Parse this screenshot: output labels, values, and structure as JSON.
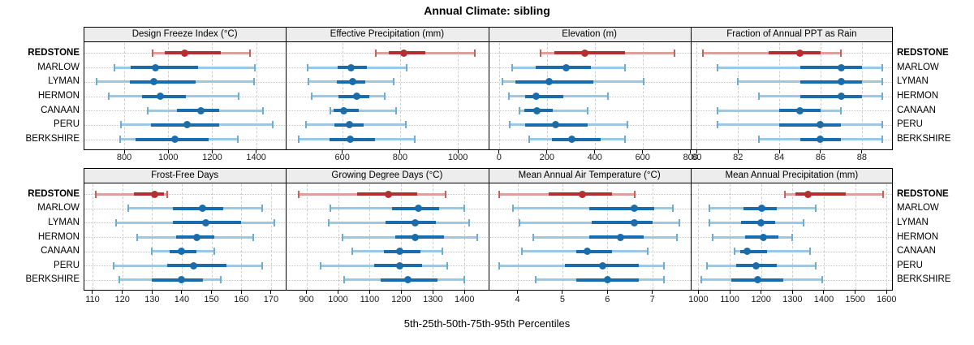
{
  "title": "Annual Climate: sibling",
  "footer_axis_caption": "5th-25th-50th-75th-95th Percentiles",
  "locations": [
    "REDSTONE",
    "MARLOW",
    "LYMAN",
    "HERMON",
    "CANAAN",
    "PERU",
    "BERKSHIRE"
  ],
  "highlight_location": "REDSTONE",
  "colors": {
    "highlight": "#B23030",
    "highlight_light": "#DDA09A",
    "highlight_cap": "#C4625C",
    "normal": "#1A6DAD",
    "normal_light": "#9DC8E3",
    "normal_cap": "#6FACD2",
    "panel_border": "#000000",
    "header_bg": "#EDEDED",
    "gridline": "#CDCDCD",
    "row_guide": "#C4C4C4",
    "tick_label": "#1a1a1a"
  },
  "chart_data": {
    "type": "dot-interval-trellis",
    "rows": 2,
    "cols": 4,
    "grid": true,
    "percentile_levels": [
      5,
      25,
      50,
      75,
      95
    ],
    "panels": [
      {
        "title": "Design Freeze Index (°C)",
        "ticks": [
          800,
          1000,
          1200,
          1400
        ],
        "xlim": [
          615,
          1535
        ],
        "data": {
          "REDSTONE": [
            930,
            985,
            1073,
            1240,
            1370
          ],
          "MARLOW": [
            755,
            830,
            940,
            1135,
            1395
          ],
          "LYMAN": [
            675,
            825,
            935,
            1125,
            1390
          ],
          "HERMON": [
            730,
            880,
            965,
            1080,
            1320
          ],
          "CANAAN": [
            905,
            1040,
            1150,
            1230,
            1430
          ],
          "PERU": [
            785,
            920,
            1085,
            1230,
            1475
          ],
          "BERKSHIRE": [
            780,
            850,
            1030,
            1185,
            1315
          ]
        }
      },
      {
        "title": "Effective Precipitation (mm)",
        "ticks": [
          600,
          800,
          1000
        ],
        "xlim": [
          405,
          1105
        ],
        "data": {
          "REDSTONE": [
            715,
            760,
            812,
            888,
            1060
          ],
          "MARLOW": [
            480,
            585,
            630,
            685,
            823
          ],
          "LYMAN": [
            482,
            580,
            635,
            680,
            777
          ],
          "HERMON": [
            495,
            588,
            649,
            693,
            747
          ],
          "CANAAN": [
            560,
            570,
            605,
            656,
            786
          ],
          "PERU": [
            474,
            572,
            625,
            673,
            819
          ],
          "BERKSHIRE": [
            449,
            556,
            628,
            712,
            851
          ]
        }
      },
      {
        "title": "Elevation (m)",
        "ticks": [
          0,
          200,
          400,
          600,
          800
        ],
        "xlim": [
          -45,
          800
        ],
        "data": {
          "REDSTONE": [
            175,
            230,
            360,
            525,
            733
          ],
          "MARLOW": [
            55,
            155,
            280,
            385,
            525
          ],
          "LYMAN": [
            15,
            70,
            210,
            395,
            605
          ],
          "HERMON": [
            40,
            110,
            155,
            270,
            455
          ],
          "CANAAN": [
            85,
            105,
            160,
            225,
            370
          ],
          "PERU": [
            45,
            110,
            235,
            370,
            535
          ],
          "BERKSHIRE": [
            125,
            220,
            305,
            425,
            525
          ]
        }
      },
      {
        "title": "Fraction of Annual PPT as Rain",
        "ticks": [
          80,
          82,
          84,
          86,
          88
        ],
        "xlim": [
          79.7,
          89.5
        ],
        "data": {
          "REDSTONE": [
            80.3,
            83.5,
            85,
            86,
            87
          ],
          "MARLOW": [
            81,
            85,
            87,
            88,
            89
          ],
          "LYMAN": [
            82,
            85,
            87,
            88,
            89
          ],
          "HERMON": [
            83,
            85,
            87,
            88,
            89
          ],
          "CANAAN": [
            81,
            84,
            85,
            86,
            87
          ],
          "PERU": [
            81,
            84,
            86,
            87,
            89
          ],
          "BERKSHIRE": [
            83,
            85,
            86,
            87,
            89
          ]
        }
      },
      {
        "title": "Frost-Free Days",
        "ticks": [
          110,
          120,
          130,
          140,
          150,
          160,
          170
        ],
        "xlim": [
          107,
          175
        ],
        "data": {
          "REDSTONE": [
            111,
            124,
            131,
            134,
            135
          ],
          "MARLOW": [
            122,
            137,
            147,
            154,
            167
          ],
          "LYMAN": [
            118,
            137,
            148,
            160,
            171
          ],
          "HERMON": [
            125,
            138,
            145,
            151,
            164
          ],
          "CANAAN": [
            130,
            136,
            140,
            145,
            151
          ],
          "PERU": [
            117,
            135,
            144,
            155,
            167
          ],
          "BERKSHIRE": [
            119,
            130,
            140,
            147,
            153
          ]
        }
      },
      {
        "title": "Growing Degree Days (°C)",
        "ticks": [
          900,
          1000,
          1100,
          1200,
          1300,
          1400
        ],
        "xlim": [
          835,
          1475
        ],
        "data": {
          "REDSTONE": [
            875,
            1060,
            1160,
            1250,
            1340
          ],
          "MARLOW": [
            975,
            1170,
            1255,
            1320,
            1400
          ],
          "LYMAN": [
            970,
            1150,
            1245,
            1310,
            1415
          ],
          "HERMON": [
            1015,
            1180,
            1245,
            1335,
            1440
          ],
          "CANAAN": [
            1045,
            1145,
            1195,
            1260,
            1330
          ],
          "PERU": [
            945,
            1115,
            1195,
            1265,
            1345
          ],
          "BERKSHIRE": [
            1020,
            1135,
            1220,
            1315,
            1400
          ]
        }
      },
      {
        "title": "Mean Annual Air Temperature (°C)",
        "ticks": [
          4,
          5,
          6,
          7
        ],
        "xlim": [
          3.35,
          7.85
        ],
        "data": {
          "REDSTONE": [
            3.6,
            4.7,
            5.45,
            6.1,
            6.6
          ],
          "MARLOW": [
            3.9,
            5.6,
            6.6,
            7.05,
            7.45
          ],
          "LYMAN": [
            4.05,
            5.65,
            6.6,
            7.0,
            7.6
          ],
          "HERMON": [
            4.35,
            5.6,
            6.3,
            6.8,
            7.55
          ],
          "CANAAN": [
            4.1,
            5.3,
            5.55,
            6.1,
            6.9
          ],
          "PERU": [
            3.6,
            5.05,
            5.9,
            6.7,
            7.25
          ],
          "BERKSHIRE": [
            4.4,
            5.3,
            6.0,
            6.7,
            7.25
          ]
        }
      },
      {
        "title": "Mean Annual Precipitation (mm)",
        "ticks": [
          1000,
          1100,
          1200,
          1300,
          1400,
          1500,
          1600
        ],
        "xlim": [
          975,
          1620
        ],
        "data": {
          "REDSTONE": [
            1275,
            1310,
            1350,
            1470,
            1590
          ],
          "MARLOW": [
            1035,
            1145,
            1203,
            1250,
            1375
          ],
          "LYMAN": [
            1035,
            1135,
            1200,
            1245,
            1335
          ],
          "HERMON": [
            1045,
            1150,
            1207,
            1255,
            1300
          ],
          "CANAAN": [
            1115,
            1133,
            1155,
            1220,
            1355
          ],
          "PERU": [
            1027,
            1120,
            1185,
            1250,
            1375
          ],
          "BERKSHIRE": [
            1010,
            1105,
            1190,
            1270,
            1395
          ]
        }
      }
    ]
  }
}
